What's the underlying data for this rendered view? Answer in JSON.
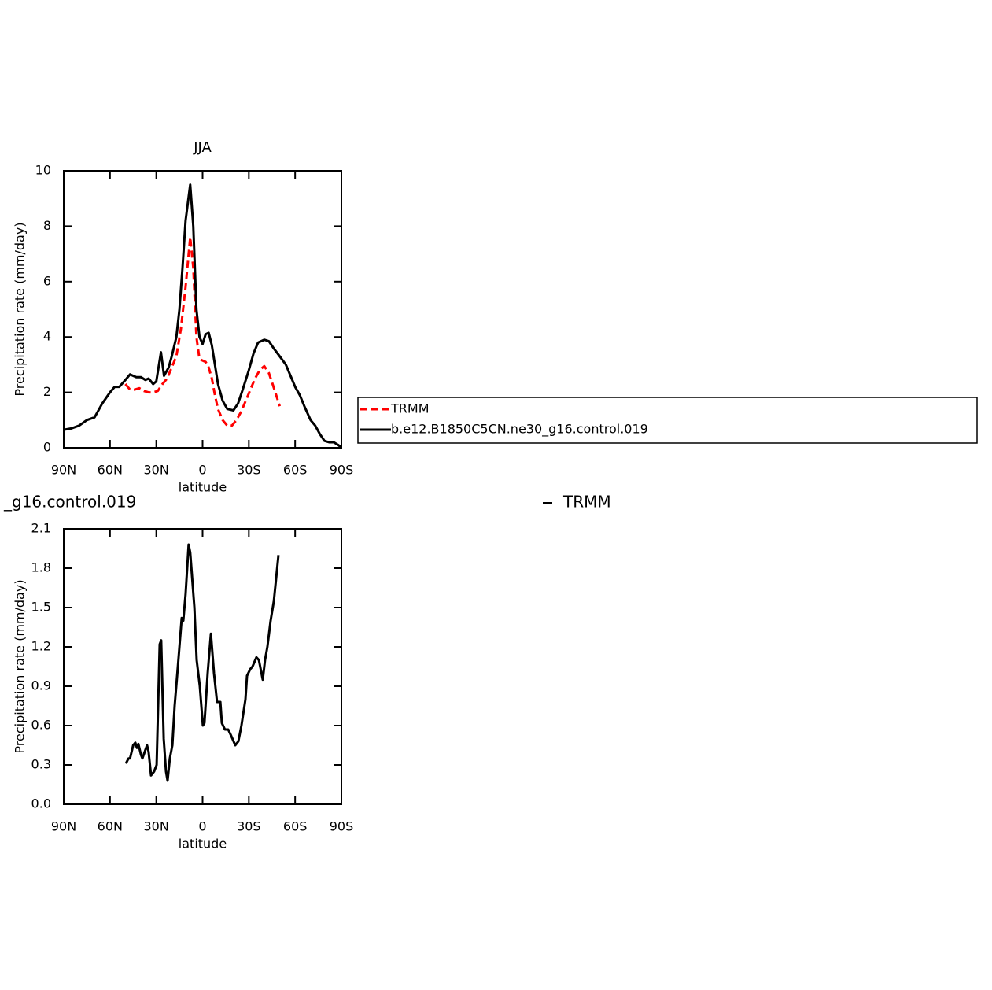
{
  "chart_data": [
    {
      "type": "line",
      "title": "JJA",
      "xlabel": "latitude",
      "ylabel": "Precipitation rate (mm/day)",
      "xlim": [
        90,
        -90
      ],
      "xticks": [
        {
          "value": 90,
          "label": "90N"
        },
        {
          "value": 60,
          "label": "60N"
        },
        {
          "value": 30,
          "label": "30N"
        },
        0,
        {
          "value": -30,
          "label": "30S"
        },
        {
          "value": -60,
          "label": "60S"
        },
        {
          "value": -90,
          "label": "90S"
        }
      ],
      "ylim": [
        0,
        10
      ],
      "yticks": [
        0,
        2,
        4,
        6,
        8,
        10
      ],
      "legend": "right",
      "series": [
        {
          "name": "TRMM",
          "color": "#ff0000",
          "dashed": true,
          "x": [
            50,
            47,
            44,
            41,
            38,
            35,
            32,
            29,
            26,
            23,
            20,
            17,
            14,
            11,
            8,
            6,
            4,
            2,
            0,
            -2,
            -4,
            -6,
            -8,
            -10,
            -13,
            -16,
            -19,
            -22,
            -25,
            -28,
            -31,
            -34,
            -37,
            -40,
            -43,
            -46,
            -50
          ],
          "values": [
            2.3,
            2.1,
            2.1,
            2.15,
            2.05,
            2.0,
            2.0,
            2.05,
            2.3,
            2.5,
            2.9,
            3.3,
            4.3,
            5.8,
            7.6,
            6.5,
            4.0,
            3.2,
            3.15,
            3.1,
            2.9,
            2.5,
            1.9,
            1.4,
            1.0,
            0.8,
            0.8,
            1.0,
            1.3,
            1.7,
            2.1,
            2.5,
            2.8,
            2.95,
            2.7,
            2.2,
            1.5
          ]
        },
        {
          "name": "b.e12.B1850C5CN.ne30_g16.control.019",
          "color": "#000000",
          "dashed": false,
          "x": [
            90,
            85,
            80,
            75,
            70,
            65,
            60,
            57,
            54,
            50,
            47,
            43,
            40,
            37,
            35,
            32,
            30,
            27,
            25,
            22,
            20,
            17,
            15,
            13,
            11,
            8,
            6,
            4,
            2,
            0,
            -2,
            -4,
            -6,
            -8,
            -10,
            -13,
            -16,
            -20,
            -23,
            -26,
            -30,
            -33,
            -36,
            -40,
            -43,
            -46,
            -50,
            -54,
            -57,
            -60,
            -63,
            -66,
            -70,
            -73,
            -76,
            -79,
            -82,
            -85,
            -88,
            -90
          ],
          "values": [
            0.65,
            0.7,
            0.8,
            1.0,
            1.1,
            1.6,
            2.0,
            2.2,
            2.2,
            2.45,
            2.65,
            2.55,
            2.55,
            2.45,
            2.5,
            2.3,
            2.4,
            3.45,
            2.6,
            2.9,
            3.3,
            4.0,
            5.0,
            6.5,
            8.2,
            9.5,
            8.0,
            5.0,
            4.0,
            3.75,
            4.1,
            4.15,
            3.7,
            3.0,
            2.3,
            1.7,
            1.4,
            1.35,
            1.6,
            2.1,
            2.8,
            3.4,
            3.8,
            3.9,
            3.85,
            3.6,
            3.3,
            3.0,
            2.6,
            2.2,
            1.9,
            1.5,
            1.0,
            0.8,
            0.5,
            0.25,
            0.2,
            0.2,
            0.1,
            0.0
          ]
        }
      ]
    },
    {
      "type": "line",
      "title_left": "_g16.control.019",
      "title_right": "TRMM",
      "xlabel": "latitude",
      "ylabel": "Precipitation rate (mm/day)",
      "xlim": [
        90,
        -90
      ],
      "xticks": [
        {
          "value": 90,
          "label": "90N"
        },
        {
          "value": 60,
          "label": "60N"
        },
        {
          "value": 30,
          "label": "30N"
        },
        0,
        {
          "value": -30,
          "label": "30S"
        },
        {
          "value": -60,
          "label": "60S"
        },
        {
          "value": -90,
          "label": "90S"
        }
      ],
      "ylim": [
        0,
        2.1
      ],
      "yticks": [
        {
          "value": 0,
          "label": "0.0"
        },
        0.3,
        0.6,
        0.9,
        1.2,
        1.5,
        1.8,
        2.1
      ],
      "series": [
        {
          "color": "#000000",
          "dashed": false,
          "x": [
            49.7,
            48,
            47,
            45,
            43.6,
            42.6,
            41.6,
            40,
            39,
            37.5,
            36,
            35,
            33.4,
            31.4,
            29.8,
            27.8,
            26.8,
            25.2,
            23.7,
            22.7,
            21.2,
            19.6,
            18.1,
            16,
            13.5,
            12.5,
            11,
            9,
            8,
            5.3,
            3.8,
            1.8,
            -0.2,
            -1.2,
            -3.3,
            -5.4,
            -7.4,
            -9.4,
            -11.5,
            -12.5,
            -14.5,
            -16.6,
            -18.6,
            -21.2,
            -23.2,
            -25.2,
            -27.8,
            -28.8,
            -30.9,
            -32.4,
            -34.9,
            -36.5,
            -39,
            -40.5,
            -42,
            -44.1,
            -46.2,
            -49.2
          ],
          "values": [
            0.31,
            0.35,
            0.35,
            0.45,
            0.47,
            0.43,
            0.46,
            0.38,
            0.35,
            0.4,
            0.45,
            0.4,
            0.22,
            0.25,
            0.3,
            1.22,
            1.25,
            0.5,
            0.25,
            0.18,
            0.35,
            0.45,
            0.75,
            1.05,
            1.42,
            1.4,
            1.6,
            1.98,
            1.92,
            1.5,
            1.1,
            0.9,
            0.6,
            0.62,
            1.0,
            1.3,
            1.0,
            0.78,
            0.78,
            0.62,
            0.57,
            0.57,
            0.52,
            0.45,
            0.48,
            0.6,
            0.8,
            0.98,
            1.03,
            1.05,
            1.12,
            1.1,
            0.95,
            1.1,
            1.2,
            1.4,
            1.55,
            1.9
          ]
        }
      ]
    }
  ]
}
